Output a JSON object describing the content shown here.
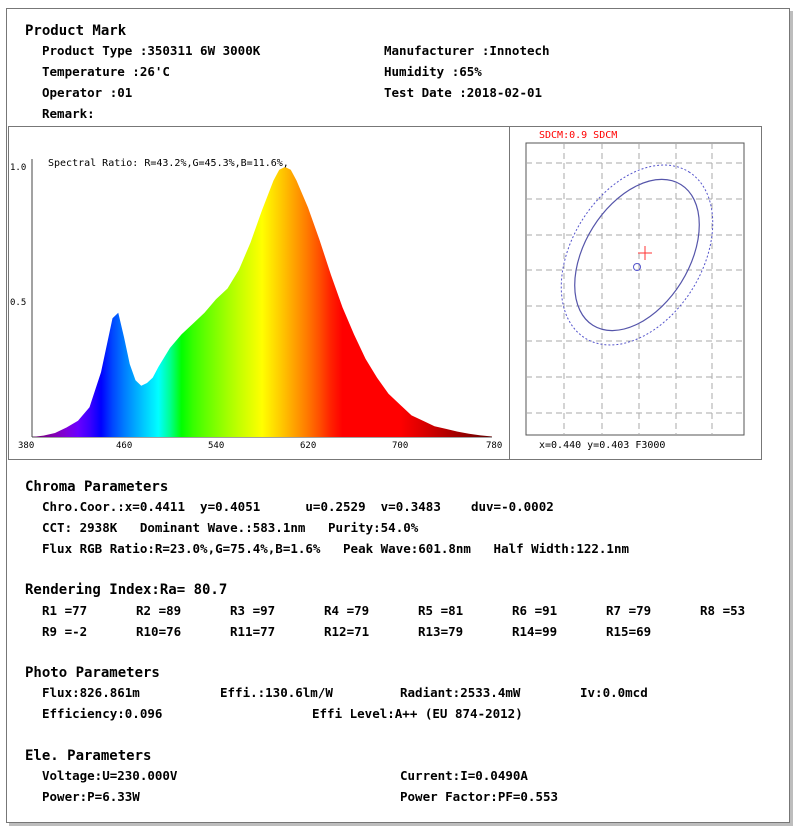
{
  "product_mark": {
    "heading": "Product Mark",
    "product_type": "Product Type :350311 6W 3000K",
    "manufacturer": "Manufacturer :Innotech",
    "temperature": "Temperature :26'C",
    "humidity": "Humidity :65%",
    "operator": "Operator :01",
    "test_date": "Test Date :2018-02-01",
    "remark": "Remark:"
  },
  "chart_data": [
    {
      "type": "area",
      "annotation": "Spectral Ratio:  R=43.2%,G=45.3%,B=11.6%,",
      "xlabel": "",
      "ylabel": "",
      "xlim": [
        380,
        780
      ],
      "ylim": [
        0,
        1.0
      ],
      "xticks": [
        "380",
        "460",
        "540",
        "620",
        "700",
        "780"
      ],
      "yticks": [
        "1.0",
        "0.5"
      ],
      "x": [
        380,
        390,
        400,
        410,
        420,
        430,
        440,
        445,
        450,
        455,
        460,
        465,
        470,
        475,
        480,
        485,
        490,
        500,
        510,
        520,
        530,
        540,
        550,
        560,
        570,
        580,
        590,
        595,
        600,
        605,
        610,
        620,
        630,
        640,
        650,
        660,
        670,
        680,
        690,
        700,
        710,
        720,
        730,
        740,
        750,
        760,
        770,
        780
      ],
      "values": [
        0.0,
        0.005,
        0.015,
        0.035,
        0.06,
        0.11,
        0.24,
        0.34,
        0.44,
        0.46,
        0.37,
        0.27,
        0.21,
        0.19,
        0.2,
        0.22,
        0.26,
        0.33,
        0.38,
        0.42,
        0.46,
        0.51,
        0.55,
        0.62,
        0.72,
        0.84,
        0.95,
        0.99,
        1.0,
        0.99,
        0.95,
        0.85,
        0.73,
        0.6,
        0.48,
        0.38,
        0.29,
        0.22,
        0.16,
        0.12,
        0.08,
        0.06,
        0.04,
        0.03,
        0.02,
        0.012,
        0.006,
        0.002
      ],
      "colorscale": "visible-spectrum"
    },
    {
      "type": "scatter",
      "title": "SDCM:0.9 SDCM",
      "title_color": "#ff0000",
      "readout": "x=0.440 y=0.403 F3000",
      "grid": true,
      "measured_point": {
        "x": 0.4411,
        "y": 0.4051
      },
      "target_point": {
        "x": 0.44,
        "y": 0.403
      },
      "ellipse_color": "#5555aa"
    }
  ],
  "chroma": {
    "heading": "Chroma Parameters",
    "line1": "Chro.Coor.:x=0.4411  y=0.4051      u=0.2529  v=0.3483    duv=-0.0002",
    "line2": "CCT: 2938K   Dominant Wave.:583.1nm   Purity:54.0%",
    "line3": "Flux RGB Ratio:R=23.0%,G=75.4%,B=1.6%   Peak Wave:601.8nm   Half Width:122.1nm"
  },
  "rendering": {
    "heading": "Rendering Index:Ra= 80.7",
    "row1": [
      "R1 =77",
      "R2 =89",
      "R3 =97",
      "R4 =79",
      "R5 =81",
      "R6 =91",
      "R7 =79",
      "R8 =53"
    ],
    "row2": [
      "R9 =-2",
      "R10=76",
      "R11=77",
      "R12=71",
      "R13=79",
      "R14=99",
      "R15=69"
    ]
  },
  "photo": {
    "heading": "Photo Parameters",
    "flux": "Flux:826.861m",
    "effi": "Effi.:130.6lm/W",
    "radiant": "Radiant:2533.4mW",
    "iv": "Iv:0.0mcd",
    "efficiency": "Efficiency:0.096",
    "effi_level": "Effi Level:A++ (EU 874-2012)"
  },
  "ele": {
    "heading": "Ele. Parameters",
    "voltage": "Voltage:U=230.000V",
    "current": "Current:I=0.0490A",
    "power": "Power:P=6.33W",
    "power_factor": "Power Factor:PF=0.553"
  }
}
